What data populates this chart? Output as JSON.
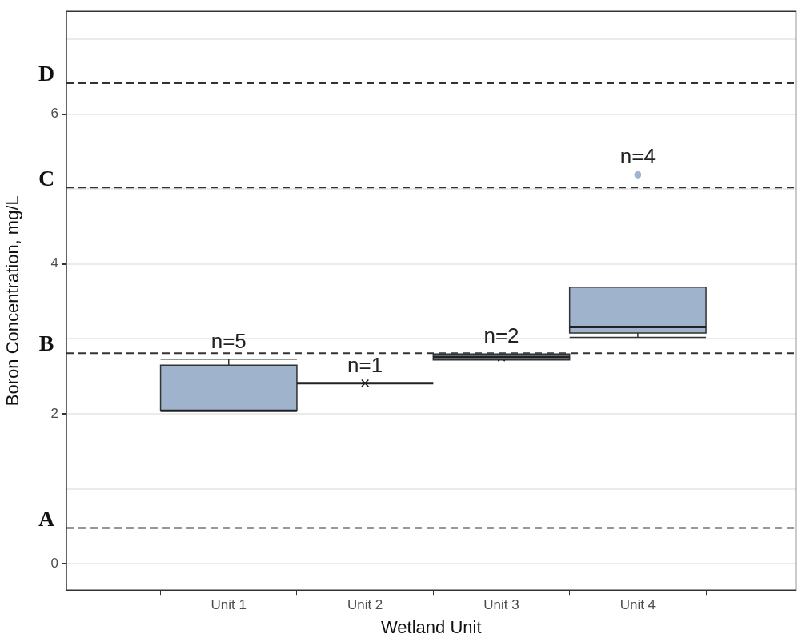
{
  "chart_data": {
    "type": "box",
    "xlabel": "Wetland Unit",
    "ylabel": "Boron Concentration, mg/L",
    "categories": [
      "Unit 1",
      "Unit 2",
      "Unit 3",
      "Unit 4"
    ],
    "series": [
      {
        "color": "#9fb4cc",
        "boxes": [
          {
            "low": 2.04,
            "q1": 2.04,
            "median": 2.04,
            "q3": 2.65,
            "high": 2.73,
            "mean": 2.44
          },
          {
            "low": 2.41,
            "q1": 2.41,
            "median": 2.41,
            "q3": 2.41,
            "high": 2.41,
            "mean": 2.41
          },
          {
            "low": 2.72,
            "q1": 2.72,
            "median": 2.76,
            "q3": 2.8,
            "high": 2.8,
            "mean": 2.75
          },
          {
            "low": 3.02,
            "q1": 3.08,
            "median": 3.16,
            "q3": 3.69,
            "high": 3.69,
            "mean": 3.62,
            "outliers": [
              5.19
            ]
          }
        ]
      }
    ],
    "ylim": [
      -0.35,
      7.37
    ],
    "yticks": [
      0,
      {
        "value": 1,
        "label": null
      },
      2,
      {
        "value": 3,
        "label": null
      },
      4,
      {
        "value": 5,
        "label": null
      },
      6,
      {
        "value": 7,
        "label": null
      }
    ],
    "grid": "y",
    "ref_lines": [
      {
        "axis": "y",
        "value": 0.48,
        "label": "A",
        "color": "#333333",
        "line_style": "dashed"
      },
      {
        "axis": "y",
        "value": 2.81,
        "label": "B",
        "color": "#333333",
        "line_style": "dashed"
      },
      {
        "axis": "y",
        "value": 5.02,
        "label": "C",
        "color": "#333333",
        "line_style": "dashed"
      },
      {
        "axis": "y",
        "value": 6.41,
        "label": "D",
        "color": "#333333",
        "line_style": "dashed"
      }
    ],
    "annotations": [
      "n=5",
      "n=1",
      "n=2",
      "n=4"
    ]
  }
}
